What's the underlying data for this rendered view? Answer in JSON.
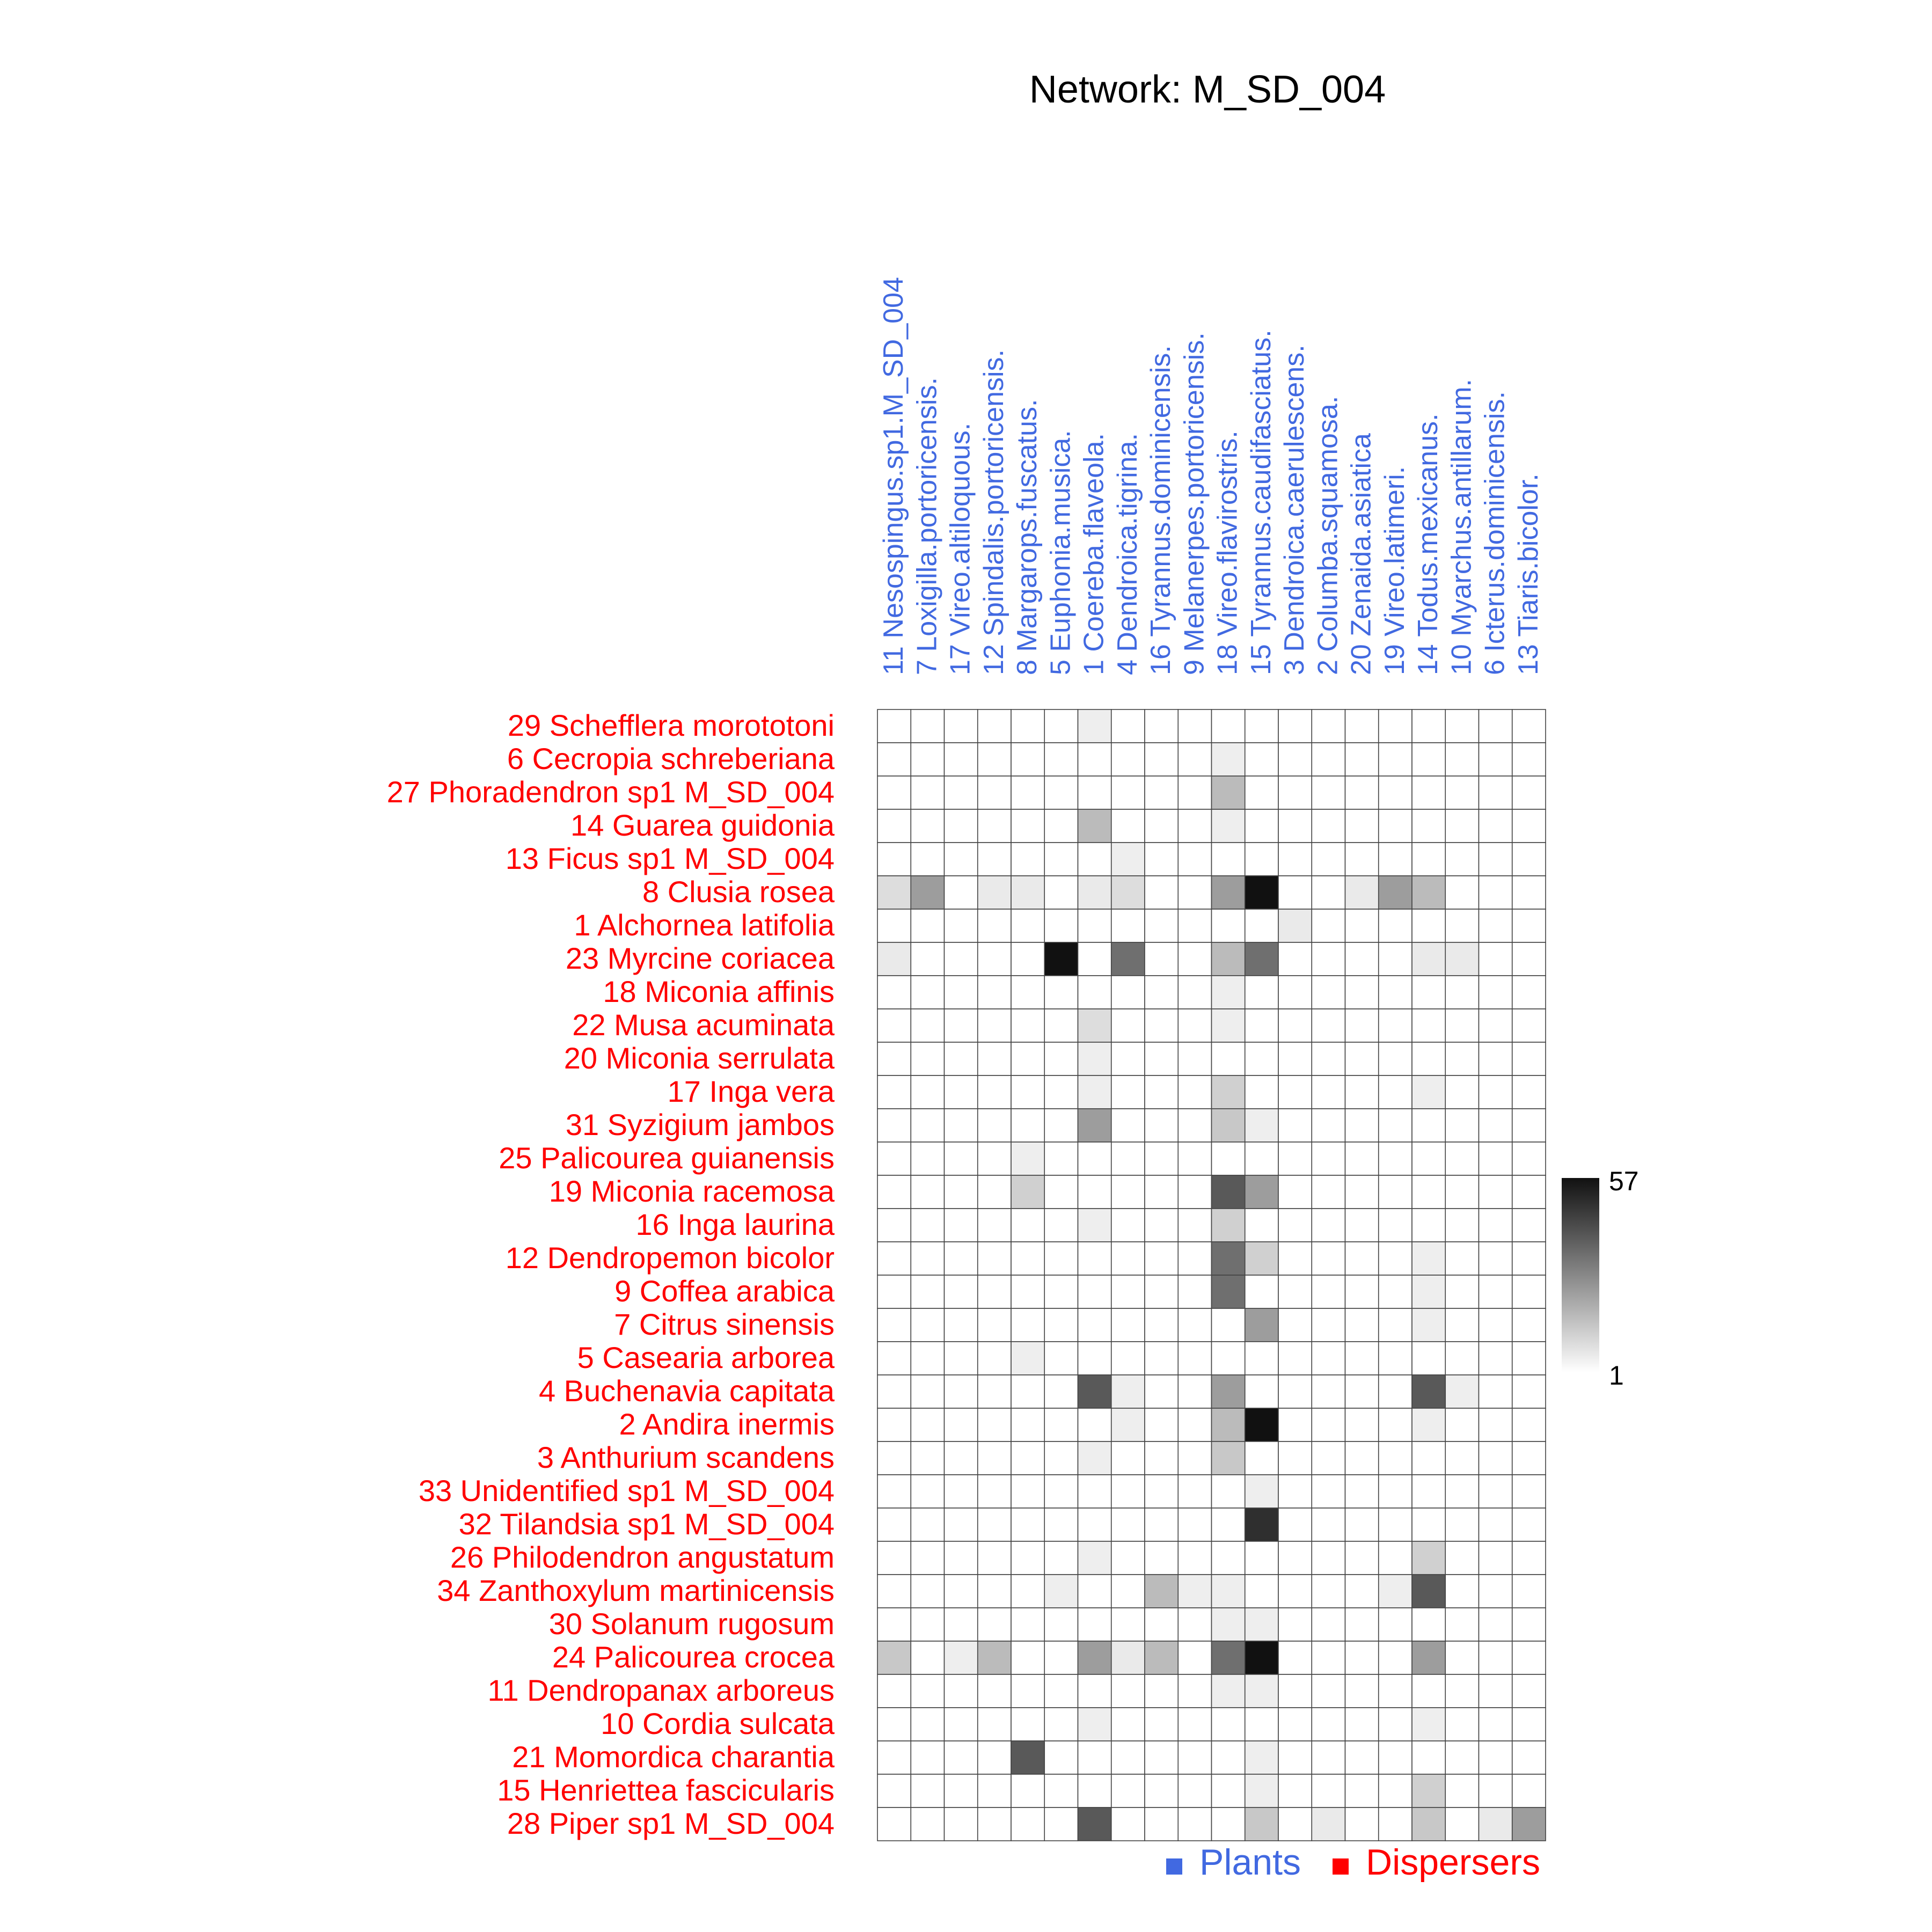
{
  "chart_data": {
    "type": "heatmap",
    "title": "Network: M_SD_004",
    "columns": [
      "11 Nesospingus.sp1.M_SD_004",
      "7 Loxigilla.portoricensis.",
      "17 Vireo.altiloquous.",
      "12 Spindalis.portoricensis.",
      "8 Margarops.fuscatus.",
      "5 Euphonia.musica.",
      "1 Coereba.flaveola.",
      "4 Dendroica.tigrina.",
      "16 Tyrannus.dominicensis.",
      "9 Melanerpes.portoricensis.",
      "18 Vireo.flavirostris.",
      "15 Tyrannus.caudifasciatus.",
      "3 Dendroica.caerulescens.",
      "2 Columba.squamosa.",
      "20 Zenaida.asiatica",
      "19 Vireo.latimeri.",
      "14 Todus.mexicanus.",
      "10 Myarchus.antillarum.",
      "6 Icterus.dominicensis.",
      "13 Tiaris.bicolor."
    ],
    "rows": [
      "29 Schefflera morototoni",
      "6 Cecropia schreberiana",
      "27 Phoradendron sp1 M_SD_004",
      "14 Guarea guidonia",
      "13 Ficus sp1 M_SD_004",
      "8 Clusia rosea",
      "1 Alchornea latifolia",
      "23 Myrcine coriacea",
      "18 Miconia affinis",
      "22 Musa acuminata",
      "20 Miconia serrulata",
      "17 Inga vera",
      "31 Syzigium jambos",
      "25 Palicourea guianensis",
      "19 Miconia racemosa",
      "16 Inga laurina",
      "12 Dendropemon bicolor",
      "9 Coffea arabica",
      "7 Citrus sinensis",
      "5 Casearia arborea",
      "4 Buchenavia capitata",
      "2 Andira inermis",
      "3 Anthurium scandens",
      "33 Unidentified sp1 M_SD_004",
      "32 Tilandsia sp1 M_SD_004",
      "26 Philodendron angustatum",
      "34 Zanthoxylum martinicensis",
      "30 Solanum rugosum",
      "24 Palicourea crocea",
      "11 Dendropanax arboreus",
      "10 Cordia sulcata",
      "21 Momordica charantia",
      "15 Henriettea fascicularis",
      "28 Piper sp1 M_SD_004"
    ],
    "values": [
      [
        0,
        0,
        0,
        0,
        0,
        0,
        5,
        0,
        0,
        0,
        0,
        0,
        0,
        0,
        0,
        0,
        0,
        0,
        0,
        0
      ],
      [
        0,
        0,
        0,
        0,
        0,
        0,
        0,
        0,
        0,
        0,
        5,
        0,
        0,
        0,
        0,
        0,
        0,
        0,
        0,
        0
      ],
      [
        0,
        0,
        0,
        0,
        0,
        0,
        0,
        0,
        0,
        0,
        17,
        0,
        0,
        0,
        0,
        0,
        0,
        0,
        0,
        0
      ],
      [
        0,
        0,
        0,
        0,
        0,
        0,
        17,
        0,
        0,
        0,
        5,
        0,
        0,
        0,
        0,
        0,
        0,
        0,
        0,
        0
      ],
      [
        0,
        0,
        0,
        0,
        0,
        0,
        0,
        5,
        0,
        0,
        0,
        0,
        0,
        0,
        0,
        0,
        0,
        0,
        0,
        0
      ],
      [
        9,
        24,
        0,
        6,
        6,
        0,
        6,
        9,
        0,
        0,
        24,
        57,
        0,
        0,
        6,
        24,
        17,
        0,
        0,
        0
      ],
      [
        0,
        0,
        0,
        0,
        0,
        0,
        0,
        0,
        0,
        0,
        0,
        0,
        6,
        0,
        0,
        0,
        0,
        0,
        0,
        0
      ],
      [
        6,
        0,
        0,
        0,
        0,
        57,
        0,
        35,
        0,
        0,
        17,
        35,
        0,
        0,
        0,
        0,
        6,
        6,
        0,
        0
      ],
      [
        0,
        0,
        0,
        0,
        0,
        0,
        0,
        0,
        0,
        0,
        5,
        0,
        0,
        0,
        0,
        0,
        0,
        0,
        0,
        0
      ],
      [
        0,
        0,
        0,
        0,
        0,
        0,
        9,
        0,
        0,
        0,
        5,
        0,
        0,
        0,
        0,
        0,
        0,
        0,
        0,
        0
      ],
      [
        0,
        0,
        0,
        0,
        0,
        0,
        5,
        0,
        0,
        0,
        0,
        0,
        0,
        0,
        0,
        0,
        0,
        0,
        0,
        0
      ],
      [
        0,
        0,
        0,
        0,
        0,
        0,
        5,
        0,
        0,
        0,
        12,
        0,
        0,
        0,
        0,
        0,
        5,
        0,
        0,
        0
      ],
      [
        0,
        0,
        0,
        0,
        0,
        0,
        24,
        0,
        0,
        0,
        14,
        5,
        0,
        0,
        0,
        0,
        0,
        0,
        0,
        0
      ],
      [
        0,
        0,
        0,
        0,
        5,
        0,
        0,
        0,
        0,
        0,
        0,
        0,
        0,
        0,
        0,
        0,
        0,
        0,
        0,
        0
      ],
      [
        0,
        0,
        0,
        0,
        12,
        0,
        0,
        0,
        0,
        0,
        40,
        24,
        0,
        0,
        0,
        0,
        0,
        0,
        0,
        0
      ],
      [
        0,
        0,
        0,
        0,
        0,
        0,
        5,
        0,
        0,
        0,
        12,
        0,
        0,
        0,
        0,
        0,
        0,
        0,
        0,
        0
      ],
      [
        0,
        0,
        0,
        0,
        0,
        0,
        0,
        0,
        0,
        0,
        35,
        12,
        0,
        0,
        0,
        0,
        5,
        0,
        0,
        0
      ],
      [
        0,
        0,
        0,
        0,
        0,
        0,
        0,
        0,
        0,
        0,
        35,
        0,
        0,
        0,
        0,
        0,
        5,
        0,
        0,
        0
      ],
      [
        0,
        0,
        0,
        0,
        0,
        0,
        0,
        0,
        0,
        0,
        0,
        24,
        0,
        0,
        0,
        0,
        5,
        0,
        0,
        0
      ],
      [
        0,
        0,
        0,
        0,
        5,
        0,
        0,
        0,
        0,
        0,
        0,
        0,
        0,
        0,
        0,
        0,
        0,
        0,
        0,
        0
      ],
      [
        0,
        0,
        0,
        0,
        0,
        0,
        40,
        5,
        0,
        0,
        24,
        0,
        0,
        0,
        0,
        0,
        40,
        5,
        0,
        0
      ],
      [
        0,
        0,
        0,
        0,
        0,
        0,
        0,
        5,
        0,
        0,
        17,
        57,
        0,
        0,
        0,
        0,
        5,
        0,
        0,
        0
      ],
      [
        0,
        0,
        0,
        0,
        0,
        0,
        5,
        0,
        0,
        0,
        14,
        0,
        0,
        0,
        0,
        0,
        0,
        0,
        0,
        0
      ],
      [
        0,
        0,
        0,
        0,
        0,
        0,
        0,
        0,
        0,
        0,
        0,
        5,
        0,
        0,
        0,
        0,
        0,
        0,
        0,
        0
      ],
      [
        0,
        0,
        0,
        0,
        0,
        0,
        0,
        0,
        0,
        0,
        0,
        50,
        0,
        0,
        0,
        0,
        0,
        0,
        0,
        0
      ],
      [
        0,
        0,
        0,
        0,
        0,
        0,
        5,
        0,
        0,
        0,
        0,
        0,
        0,
        0,
        0,
        0,
        12,
        0,
        0,
        0
      ],
      [
        0,
        0,
        0,
        0,
        0,
        5,
        0,
        0,
        17,
        5,
        5,
        0,
        0,
        0,
        0,
        5,
        40,
        0,
        0,
        0
      ],
      [
        0,
        0,
        0,
        0,
        0,
        0,
        0,
        0,
        0,
        0,
        5,
        5,
        0,
        0,
        0,
        0,
        0,
        0,
        0,
        0
      ],
      [
        14,
        0,
        5,
        17,
        0,
        0,
        24,
        6,
        17,
        0,
        35,
        57,
        0,
        0,
        0,
        0,
        24,
        0,
        0,
        0
      ],
      [
        0,
        0,
        0,
        0,
        0,
        0,
        0,
        0,
        0,
        0,
        5,
        5,
        0,
        0,
        0,
        0,
        0,
        0,
        0,
        0
      ],
      [
        0,
        0,
        0,
        0,
        0,
        0,
        5,
        0,
        0,
        0,
        0,
        0,
        0,
        0,
        0,
        0,
        5,
        0,
        0,
        0
      ],
      [
        0,
        0,
        0,
        0,
        40,
        0,
        0,
        0,
        0,
        0,
        0,
        5,
        0,
        0,
        0,
        0,
        0,
        0,
        0,
        0
      ],
      [
        0,
        0,
        0,
        0,
        0,
        0,
        0,
        0,
        0,
        0,
        0,
        5,
        0,
        0,
        0,
        0,
        12,
        0,
        0,
        0
      ],
      [
        0,
        0,
        0,
        0,
        0,
        0,
        40,
        0,
        0,
        0,
        0,
        14,
        0,
        6,
        0,
        0,
        14,
        0,
        6,
        24
      ]
    ],
    "colorbar": {
      "min": 1,
      "max": 57,
      "min_label": "1",
      "max_label": "57",
      "low_color": "#ffffff",
      "high_color": "#111111"
    },
    "legend": [
      {
        "label": "Plants",
        "color": "#4169e1"
      },
      {
        "label": "Dispersers",
        "color": "#ff0000"
      }
    ],
    "column_label_color": "#4169e1",
    "row_label_color": "#ff0000",
    "grid": true
  }
}
